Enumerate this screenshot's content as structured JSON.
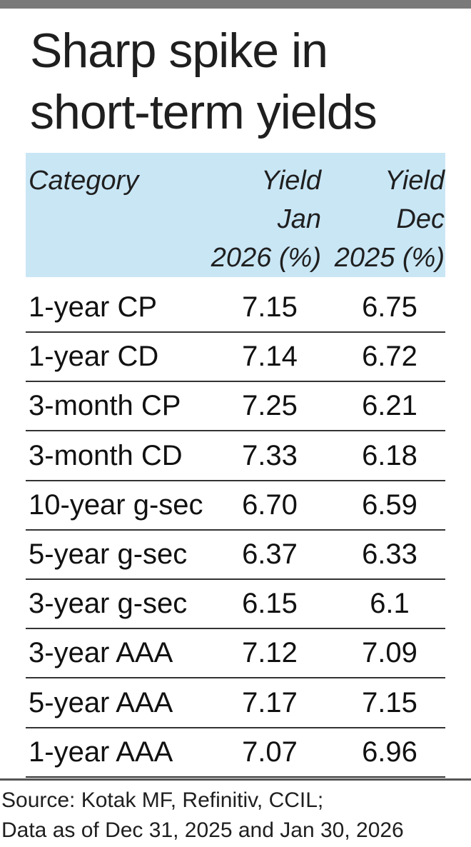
{
  "title": {
    "line1": "Sharp spike in",
    "line2": "short-term yields"
  },
  "table": {
    "headers": {
      "category": "Category",
      "jan": [
        "Yield",
        "Jan",
        "2026 (%)"
      ],
      "dec": [
        "Yield",
        "Dec",
        "2025 (%)"
      ]
    },
    "rows": [
      {
        "category": "1-year CP",
        "jan": "7.15",
        "dec": "6.75"
      },
      {
        "category": "1-year CD",
        "jan": "7.14",
        "dec": "6.72"
      },
      {
        "category": "3-month CP",
        "jan": "7.25",
        "dec": "6.21"
      },
      {
        "category": "3-month CD",
        "jan": "7.33",
        "dec": "6.18"
      },
      {
        "category": "10-year g-sec",
        "jan": "6.70",
        "dec": "6.59"
      },
      {
        "category": "5-year g-sec",
        "jan": "6.37",
        "dec": "6.33"
      },
      {
        "category": "3-year g-sec",
        "jan": "6.15",
        "dec": "6.1"
      },
      {
        "category": "3-year AAA",
        "jan": "7.12",
        "dec": "7.09"
      },
      {
        "category": "5-year AAA",
        "jan": "7.17",
        "dec": "7.15"
      },
      {
        "category": "1-year AAA",
        "jan": "7.07",
        "dec": "6.96"
      }
    ]
  },
  "source": {
    "line1": "Source: Kotak MF, Refinitiv, CCIL;",
    "line2": "Data as of Dec 31, 2025  and Jan 30, 2026"
  },
  "colors": {
    "header_background": "#c9e6f5",
    "top_bar": "#7a7a7a",
    "rule": "#333333"
  },
  "chart_data": {
    "type": "table",
    "title": "Sharp spike in short-term yields",
    "columns": [
      "Category",
      "Yield Jan 2026 (%)",
      "Yield Dec 2025 (%)"
    ],
    "categories": [
      "1-year CP",
      "1-year CD",
      "3-month CP",
      "3-month CD",
      "10-year g-sec",
      "5-year g-sec",
      "3-year g-sec",
      "3-year AAA",
      "5-year AAA",
      "1-year AAA"
    ],
    "series": [
      {
        "name": "Yield Jan 2026 (%)",
        "values": [
          7.15,
          7.14,
          7.25,
          7.33,
          6.7,
          6.37,
          6.15,
          7.12,
          7.17,
          7.07
        ]
      },
      {
        "name": "Yield Dec 2025 (%)",
        "values": [
          6.75,
          6.72,
          6.21,
          6.18,
          6.59,
          6.33,
          6.1,
          7.09,
          7.15,
          6.96
        ]
      }
    ]
  }
}
